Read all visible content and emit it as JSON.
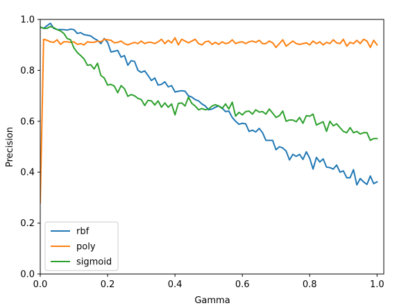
{
  "chart_data": {
    "type": "line",
    "xlabel": "Gamma",
    "ylabel": "Precision",
    "xlim": [
      0.0,
      1.02
    ],
    "ylim": [
      0.0,
      1.0
    ],
    "xticks": [
      0.0,
      0.2,
      0.4,
      0.6,
      0.8,
      1.0
    ],
    "yticks": [
      0.0,
      0.2,
      0.4,
      0.6,
      0.8,
      1.0
    ],
    "xtick_labels": [
      "0.0",
      "0.2",
      "0.4",
      "0.6",
      "0.8",
      "1.0"
    ],
    "ytick_labels": [
      "0.0",
      "0.2",
      "0.4",
      "0.6",
      "0.8",
      "1.0"
    ],
    "grid": false,
    "legend_position": "lower-left",
    "x": [
      0.0,
      0.01,
      0.02,
      0.03,
      0.04,
      0.05,
      0.06,
      0.07,
      0.08,
      0.09,
      0.1,
      0.11,
      0.12,
      0.13,
      0.14,
      0.15,
      0.16,
      0.17,
      0.18,
      0.19,
      0.2,
      0.21,
      0.22,
      0.23,
      0.24,
      0.25,
      0.26,
      0.27,
      0.28,
      0.29,
      0.3,
      0.31,
      0.32,
      0.33,
      0.34,
      0.35,
      0.36,
      0.37,
      0.38,
      0.39,
      0.4,
      0.41,
      0.42,
      0.43,
      0.44,
      0.45,
      0.46,
      0.47,
      0.48,
      0.49,
      0.5,
      0.51,
      0.52,
      0.53,
      0.54,
      0.55,
      0.56,
      0.57,
      0.58,
      0.59,
      0.6,
      0.61,
      0.62,
      0.63,
      0.64,
      0.65,
      0.66,
      0.67,
      0.68,
      0.69,
      0.7,
      0.71,
      0.72,
      0.73,
      0.74,
      0.75,
      0.76,
      0.77,
      0.78,
      0.79,
      0.8,
      0.81,
      0.82,
      0.83,
      0.84,
      0.85,
      0.86,
      0.87,
      0.88,
      0.89,
      0.9,
      0.91,
      0.92,
      0.93,
      0.94,
      0.95,
      0.96,
      0.97,
      0.98,
      0.99,
      1.0
    ],
    "series": [
      {
        "name": "rbf",
        "color": "#1f77b4",
        "values": [
          0.97,
          0.965,
          0.975,
          0.985,
          0.965,
          0.96,
          0.96,
          0.96,
          0.958,
          0.962,
          0.96,
          0.945,
          0.948,
          0.94,
          0.938,
          0.935,
          0.925,
          0.918,
          0.905,
          0.925,
          0.91,
          0.872,
          0.875,
          0.878,
          0.852,
          0.858,
          0.82,
          0.838,
          0.835,
          0.8,
          0.792,
          0.798,
          0.78,
          0.76,
          0.77,
          0.742,
          0.745,
          0.755,
          0.735,
          0.74,
          0.715,
          0.718,
          0.72,
          0.718,
          0.7,
          0.695,
          0.685,
          0.68,
          0.668,
          0.66,
          0.645,
          0.648,
          0.655,
          0.66,
          0.652,
          0.638,
          0.64,
          0.615,
          0.6,
          0.588,
          0.592,
          0.59,
          0.56,
          0.565,
          0.558,
          0.572,
          0.555,
          0.525,
          0.525,
          0.525,
          0.488,
          0.5,
          0.495,
          0.483,
          0.448,
          0.47,
          0.462,
          0.47,
          0.45,
          0.48,
          0.455,
          0.412,
          0.458,
          0.44,
          0.452,
          0.42,
          0.418,
          0.412,
          0.428,
          0.4,
          0.405,
          0.378,
          0.378,
          0.41,
          0.35,
          0.375,
          0.362,
          0.352,
          0.385,
          0.355,
          0.362
        ]
      },
      {
        "name": "poly",
        "color": "#ff7f0e",
        "values": [
          0.28,
          0.922,
          0.918,
          0.912,
          0.91,
          0.92,
          0.902,
          0.912,
          0.912,
          0.91,
          0.912,
          0.902,
          0.905,
          0.9,
          0.912,
          0.91,
          0.91,
          0.915,
          0.912,
          0.922,
          0.92,
          0.918,
          0.908,
          0.91,
          0.915,
          0.905,
          0.9,
          0.905,
          0.91,
          0.905,
          0.915,
          0.905,
          0.91,
          0.91,
          0.905,
          0.912,
          0.922,
          0.905,
          0.918,
          0.908,
          0.928,
          0.9,
          0.922,
          0.915,
          0.908,
          0.915,
          0.922,
          0.905,
          0.9,
          0.912,
          0.915,
          0.902,
          0.91,
          0.902,
          0.912,
          0.905,
          0.908,
          0.92,
          0.905,
          0.91,
          0.912,
          0.905,
          0.912,
          0.915,
          0.91,
          0.918,
          0.905,
          0.905,
          0.915,
          0.908,
          0.89,
          0.905,
          0.92,
          0.895,
          0.905,
          0.915,
          0.905,
          0.902,
          0.905,
          0.908,
          0.9,
          0.915,
          0.905,
          0.912,
          0.9,
          0.91,
          0.905,
          0.92,
          0.908,
          0.905,
          0.922,
          0.895,
          0.91,
          0.905,
          0.918,
          0.905,
          0.922,
          0.915,
          0.89,
          0.918,
          0.9
        ]
      },
      {
        "name": "sigmoid",
        "color": "#2ca02c",
        "values": [
          0.97,
          0.965,
          0.965,
          0.972,
          0.968,
          0.96,
          0.955,
          0.945,
          0.925,
          0.92,
          0.888,
          0.87,
          0.858,
          0.845,
          0.82,
          0.822,
          0.805,
          0.828,
          0.78,
          0.77,
          0.742,
          0.745,
          0.738,
          0.712,
          0.74,
          0.728,
          0.698,
          0.705,
          0.7,
          0.69,
          0.685,
          0.662,
          0.682,
          0.68,
          0.664,
          0.68,
          0.655,
          0.672,
          0.655,
          0.668,
          0.625,
          0.67,
          0.672,
          0.66,
          0.695,
          0.67,
          0.66,
          0.645,
          0.65,
          0.645,
          0.648,
          0.66,
          0.665,
          0.66,
          0.65,
          0.668,
          0.648,
          0.675,
          0.62,
          0.635,
          0.625,
          0.638,
          0.64,
          0.628,
          0.645,
          0.636,
          0.638,
          0.628,
          0.648,
          0.632,
          0.615,
          0.622,
          0.64,
          0.6,
          0.605,
          0.605,
          0.598,
          0.615,
          0.592,
          0.622,
          0.62,
          0.628,
          0.585,
          0.592,
          0.598,
          0.56,
          0.6,
          0.582,
          0.59,
          0.575,
          0.56,
          0.555,
          0.575,
          0.555,
          0.56,
          0.55,
          0.555,
          0.555,
          0.525,
          0.532,
          0.532
        ]
      }
    ]
  }
}
